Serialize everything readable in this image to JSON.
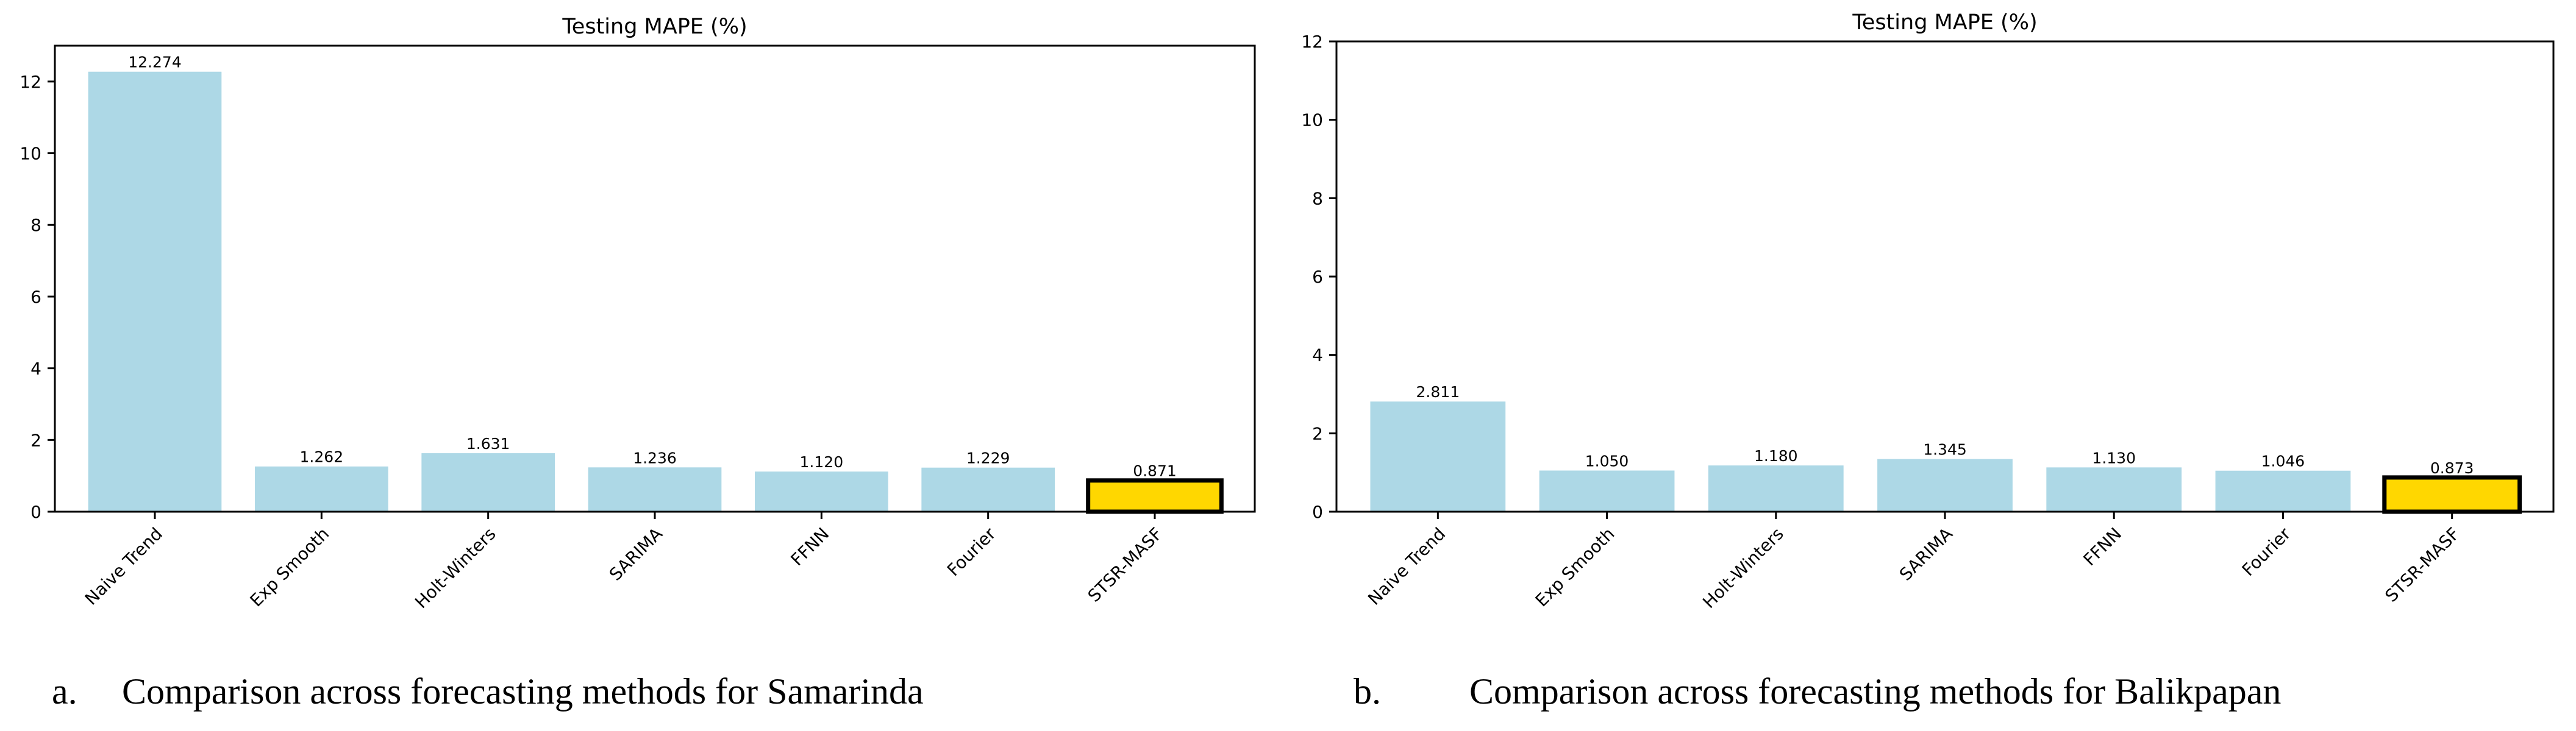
{
  "chart_data": [
    {
      "type": "bar",
      "title": "Testing MAPE (%)",
      "xlabel": "",
      "ylabel": "",
      "categories": [
        "Naive Trend",
        "Exp Smooth",
        "Holt-Winters",
        "SARIMA",
        "FFNN",
        "Fourier",
        "STSR-MASF"
      ],
      "values": [
        12.274,
        1.262,
        1.631,
        1.236,
        1.12,
        1.229,
        0.871
      ],
      "value_labels": [
        "12.274",
        "1.262",
        "1.631",
        "1.236",
        "1.120",
        "1.229",
        "0.871"
      ],
      "ylim": [
        0,
        13
      ],
      "yticks": [
        0,
        2,
        4,
        6,
        8,
        10,
        12
      ],
      "highlight_index": 6,
      "bar_color": "#add8e6",
      "highlight_color": "#ffd700",
      "caption_letter": "a.",
      "caption": "Comparison across forecasting methods for Samarinda"
    },
    {
      "type": "bar",
      "title": "Testing MAPE (%)",
      "xlabel": "",
      "ylabel": "",
      "categories": [
        "Naive Trend",
        "Exp Smooth",
        "Holt-Winters",
        "SARIMA",
        "FFNN",
        "Fourier",
        "STSR-MASF"
      ],
      "values": [
        2.811,
        1.05,
        1.18,
        1.345,
        1.13,
        1.046,
        0.873
      ],
      "value_labels": [
        "2.811",
        "1.050",
        "1.180",
        "1.345",
        "1.130",
        "1.046",
        "0.873"
      ],
      "ylim": [
        0,
        12
      ],
      "yticks": [
        0,
        2,
        4,
        6,
        8,
        10,
        12
      ],
      "highlight_index": 6,
      "bar_color": "#add8e6",
      "highlight_color": "#ffd700",
      "caption_letter": "b.",
      "caption": "Comparison across forecasting methods for Balikpapan"
    }
  ]
}
